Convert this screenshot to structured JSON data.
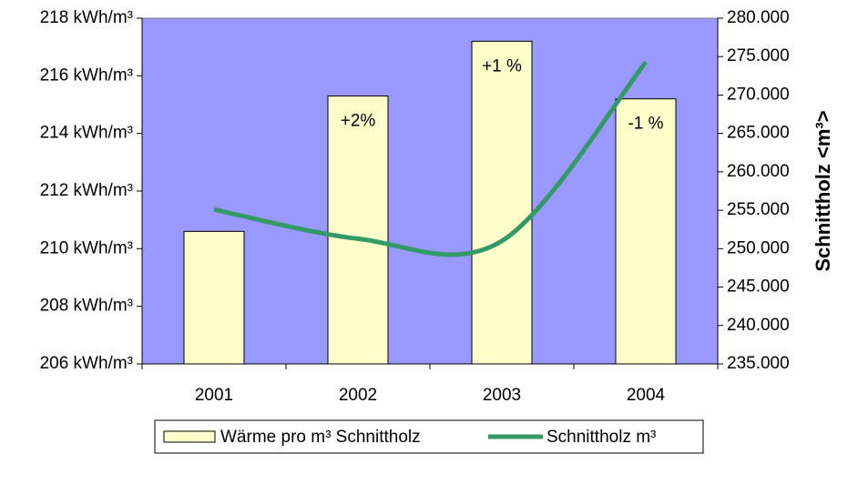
{
  "chart_data": {
    "type": "bar-line",
    "categories": [
      "2001",
      "2002",
      "2003",
      "2004"
    ],
    "series": [
      {
        "name": "Wärme pro m³ Schnittholz",
        "color": "#ffffcc",
        "type": "bar",
        "values": [
          210.6,
          215.3,
          217.2,
          215.2
        ]
      },
      {
        "name": "Schnittholz m³",
        "color": "#339966",
        "type": "line",
        "axis": "y2",
        "values": [
          255100,
          251300,
          251000,
          274300
        ]
      }
    ],
    "annotations": [
      "+2%",
      "+1 %",
      "-1 %"
    ],
    "y2label": "Schnittholz <m³>",
    "ylim": [
      206,
      218
    ],
    "yticks": [
      {
        "value": 206,
        "label": "206 kWh/m³"
      },
      {
        "value": 208,
        "label": "208 kWh/m³"
      },
      {
        "value": 210,
        "label": "210 kWh/m³"
      },
      {
        "value": 212,
        "label": "212 kWh/m³"
      },
      {
        "value": 214,
        "label": "214 kWh/m³"
      },
      {
        "value": 216,
        "label": "216 kWh/m³"
      },
      {
        "value": 218,
        "label": "218 kWh/m³"
      }
    ],
    "y2lim": [
      235000,
      280000
    ],
    "y2ticks": [
      {
        "value": 235000,
        "label": "235.000"
      },
      {
        "value": 240000,
        "label": "240.000"
      },
      {
        "value": 245000,
        "label": "245.000"
      },
      {
        "value": 250000,
        "label": "250.000"
      },
      {
        "value": 255000,
        "label": "255.000"
      },
      {
        "value": 260000,
        "label": "260.000"
      },
      {
        "value": 265000,
        "label": "265.000"
      },
      {
        "value": 270000,
        "label": "270.000"
      },
      {
        "value": 275000,
        "label": "275.000"
      },
      {
        "value": 280000,
        "label": "280.000"
      }
    ],
    "plot_background": "#9999ff",
    "legend": "bottom"
  }
}
